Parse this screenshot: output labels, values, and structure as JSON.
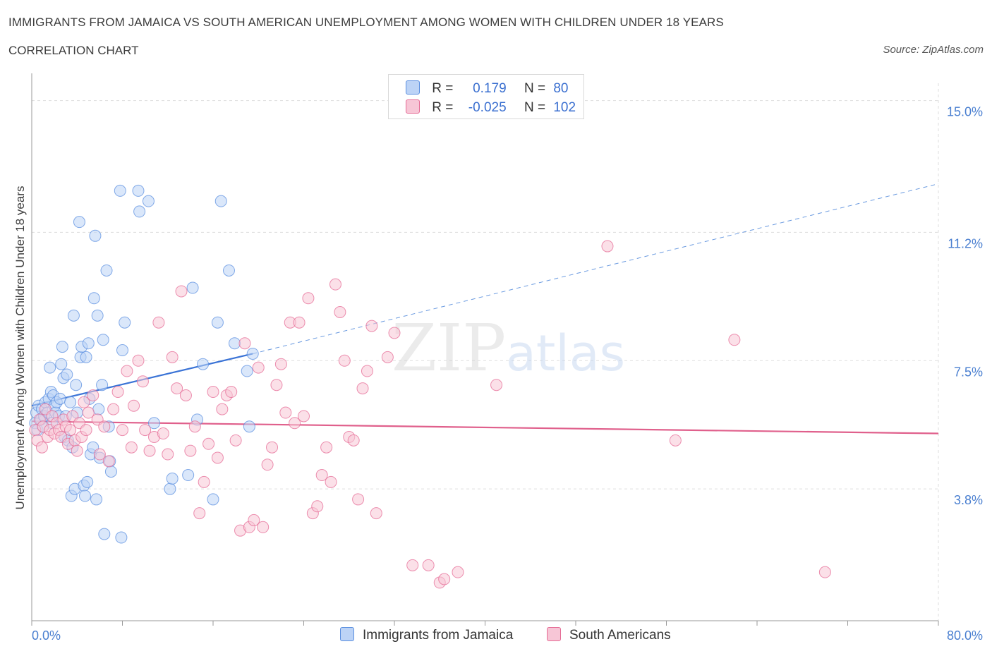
{
  "title": "IMMIGRANTS FROM JAMAICA VS SOUTH AMERICAN UNEMPLOYMENT AMONG WOMEN WITH CHILDREN UNDER 18 YEARS",
  "subtitle": "CORRELATION CHART",
  "source": "Source: ZipAtlas.com",
  "watermark": {
    "zip": "ZIP",
    "atlas": "atlas"
  },
  "colors": {
    "blue": "#5b8fe0",
    "blue_fill": "#bcd3f6",
    "pink": "#e56b95",
    "pink_fill": "#f7c6d6",
    "tick_label": "#4a7fd0",
    "grid": "#dddddd"
  },
  "legend": {
    "rows": [
      {
        "r_label": "R = ",
        "r_value": "0.179",
        "n_label": "N = ",
        "n_value": "80"
      },
      {
        "r_label": "R = ",
        "r_value": "-0.025",
        "n_label": "N = ",
        "n_value": "102"
      }
    ]
  },
  "bottom_legend": [
    "Immigrants from Jamaica",
    "South Americans"
  ],
  "chart_data": {
    "type": "scatter",
    "xlabel": "",
    "ylabel": "Unemployment Among Women with Children Under 18 years",
    "xlim": [
      0,
      80
    ],
    "ylim": [
      0,
      15.5
    ],
    "x_tick_labels": [
      "0.0%",
      "80.0%"
    ],
    "y_ticks": [
      3.8,
      7.5,
      11.2,
      15.0
    ],
    "y_tick_labels": [
      "3.8%",
      "7.5%",
      "11.2%",
      "15.0%"
    ],
    "grid": true,
    "legend_position": "top-center",
    "series": [
      {
        "name": "Immigrants from Jamaica",
        "color": "#5b8fe0",
        "trend": {
          "x": [
            0,
            19.5
          ],
          "y": [
            6.2,
            7.7
          ],
          "dashed_extension": {
            "x": [
              19.5,
              80
            ],
            "y": [
              7.7,
              12.6
            ]
          }
        },
        "points": [
          [
            0.3,
            5.7
          ],
          [
            0.4,
            6.0
          ],
          [
            0.5,
            5.5
          ],
          [
            0.6,
            6.2
          ],
          [
            0.8,
            5.8
          ],
          [
            0.9,
            6.1
          ],
          [
            1.0,
            5.6
          ],
          [
            1.1,
            5.9
          ],
          [
            1.2,
            6.3
          ],
          [
            1.4,
            6.0
          ],
          [
            1.5,
            6.4
          ],
          [
            1.6,
            7.3
          ],
          [
            1.7,
            6.6
          ],
          [
            1.8,
            5.7
          ],
          [
            1.9,
            6.5
          ],
          [
            2.0,
            6.2
          ],
          [
            2.1,
            6.0
          ],
          [
            2.2,
            6.3
          ],
          [
            2.4,
            5.9
          ],
          [
            2.5,
            6.4
          ],
          [
            2.6,
            7.4
          ],
          [
            2.7,
            7.9
          ],
          [
            2.8,
            7.0
          ],
          [
            2.9,
            5.3
          ],
          [
            3.0,
            5.9
          ],
          [
            3.1,
            7.1
          ],
          [
            3.2,
            5.2
          ],
          [
            3.4,
            6.3
          ],
          [
            3.5,
            3.6
          ],
          [
            3.6,
            5.0
          ],
          [
            3.7,
            8.8
          ],
          [
            3.8,
            3.8
          ],
          [
            3.9,
            6.8
          ],
          [
            4.0,
            6.0
          ],
          [
            4.2,
            11.5
          ],
          [
            4.3,
            7.6
          ],
          [
            4.4,
            7.9
          ],
          [
            4.6,
            3.9
          ],
          [
            4.7,
            3.6
          ],
          [
            4.8,
            7.6
          ],
          [
            4.9,
            4.0
          ],
          [
            5.0,
            8.0
          ],
          [
            5.1,
            6.4
          ],
          [
            5.2,
            4.8
          ],
          [
            5.4,
            5.0
          ],
          [
            5.5,
            9.3
          ],
          [
            5.6,
            11.1
          ],
          [
            5.7,
            3.5
          ],
          [
            5.8,
            8.8
          ],
          [
            5.9,
            6.1
          ],
          [
            6.0,
            4.7
          ],
          [
            6.2,
            6.8
          ],
          [
            6.3,
            8.1
          ],
          [
            6.4,
            2.5
          ],
          [
            6.6,
            10.1
          ],
          [
            6.8,
            5.6
          ],
          [
            6.9,
            4.6
          ],
          [
            7.0,
            4.3
          ],
          [
            7.8,
            12.4
          ],
          [
            7.9,
            2.4
          ],
          [
            8.0,
            7.8
          ],
          [
            8.2,
            8.6
          ],
          [
            9.4,
            12.4
          ],
          [
            9.5,
            11.8
          ],
          [
            10.3,
            12.1
          ],
          [
            10.8,
            5.7
          ],
          [
            12.2,
            3.8
          ],
          [
            12.4,
            4.1
          ],
          [
            13.8,
            4.2
          ],
          [
            14.2,
            9.6
          ],
          [
            14.6,
            5.8
          ],
          [
            15.1,
            7.4
          ],
          [
            16.0,
            3.5
          ],
          [
            16.4,
            8.6
          ],
          [
            16.7,
            12.1
          ],
          [
            17.4,
            10.1
          ],
          [
            17.9,
            8.0
          ],
          [
            19.0,
            7.2
          ],
          [
            19.2,
            5.6
          ],
          [
            19.5,
            7.7
          ]
        ]
      },
      {
        "name": "South Americans",
        "color": "#e56b95",
        "trend": {
          "x": [
            0,
            80
          ],
          "y": [
            5.75,
            5.4
          ]
        },
        "points": [
          [
            0.3,
            5.5
          ],
          [
            0.5,
            5.2
          ],
          [
            0.7,
            5.8
          ],
          [
            0.9,
            5.0
          ],
          [
            1.0,
            5.6
          ],
          [
            1.2,
            6.1
          ],
          [
            1.4,
            5.3
          ],
          [
            1.6,
            5.5
          ],
          [
            1.8,
            5.9
          ],
          [
            2.0,
            5.4
          ],
          [
            2.2,
            5.7
          ],
          [
            2.4,
            5.5
          ],
          [
            2.6,
            5.3
          ],
          [
            2.8,
            5.8
          ],
          [
            3.0,
            5.6
          ],
          [
            3.2,
            5.1
          ],
          [
            3.4,
            5.5
          ],
          [
            3.6,
            5.9
          ],
          [
            3.8,
            5.2
          ],
          [
            4.0,
            4.9
          ],
          [
            4.2,
            5.7
          ],
          [
            4.4,
            5.3
          ],
          [
            4.6,
            6.3
          ],
          [
            4.8,
            5.5
          ],
          [
            5.0,
            6.0
          ],
          [
            5.4,
            6.5
          ],
          [
            5.8,
            5.8
          ],
          [
            6.0,
            4.8
          ],
          [
            6.4,
            5.6
          ],
          [
            6.8,
            4.6
          ],
          [
            7.2,
            6.1
          ],
          [
            7.6,
            6.6
          ],
          [
            8.0,
            5.5
          ],
          [
            8.4,
            7.2
          ],
          [
            8.8,
            5.0
          ],
          [
            9.0,
            6.2
          ],
          [
            9.4,
            7.5
          ],
          [
            9.8,
            6.9
          ],
          [
            10.0,
            5.5
          ],
          [
            10.4,
            4.9
          ],
          [
            10.8,
            5.3
          ],
          [
            11.2,
            8.6
          ],
          [
            11.6,
            5.4
          ],
          [
            12.0,
            4.8
          ],
          [
            12.4,
            7.6
          ],
          [
            12.8,
            6.7
          ],
          [
            13.2,
            9.5
          ],
          [
            13.6,
            6.5
          ],
          [
            14.0,
            4.9
          ],
          [
            14.4,
            5.6
          ],
          [
            14.8,
            3.1
          ],
          [
            15.2,
            4.0
          ],
          [
            15.6,
            5.1
          ],
          [
            16.0,
            6.6
          ],
          [
            16.4,
            4.7
          ],
          [
            16.8,
            6.1
          ],
          [
            17.2,
            6.5
          ],
          [
            17.6,
            6.6
          ],
          [
            18.0,
            5.2
          ],
          [
            18.4,
            2.6
          ],
          [
            18.8,
            8.0
          ],
          [
            19.2,
            2.7
          ],
          [
            19.6,
            2.9
          ],
          [
            20.0,
            7.3
          ],
          [
            20.4,
            2.7
          ],
          [
            20.8,
            4.5
          ],
          [
            21.2,
            5.0
          ],
          [
            21.6,
            6.8
          ],
          [
            22.0,
            7.4
          ],
          [
            22.4,
            6.0
          ],
          [
            22.8,
            8.6
          ],
          [
            23.2,
            5.7
          ],
          [
            23.6,
            8.6
          ],
          [
            24.0,
            5.9
          ],
          [
            24.4,
            9.3
          ],
          [
            24.8,
            3.1
          ],
          [
            25.2,
            3.3
          ],
          [
            25.6,
            4.2
          ],
          [
            26.0,
            5.0
          ],
          [
            26.4,
            4.0
          ],
          [
            26.8,
            9.7
          ],
          [
            27.2,
            8.9
          ],
          [
            27.6,
            7.5
          ],
          [
            28.0,
            5.3
          ],
          [
            28.4,
            5.2
          ],
          [
            28.8,
            3.5
          ],
          [
            29.2,
            6.7
          ],
          [
            29.6,
            7.2
          ],
          [
            30.0,
            8.5
          ],
          [
            30.4,
            3.1
          ],
          [
            31.4,
            7.6
          ],
          [
            32.0,
            8.3
          ],
          [
            33.6,
            1.6
          ],
          [
            35.0,
            1.6
          ],
          [
            36.0,
            1.1
          ],
          [
            37.6,
            1.4
          ],
          [
            41.0,
            6.8
          ],
          [
            50.8,
            10.8
          ],
          [
            56.8,
            5.2
          ],
          [
            62.0,
            8.1
          ],
          [
            70.0,
            1.4
          ],
          [
            36.4,
            1.2
          ]
        ]
      }
    ]
  }
}
